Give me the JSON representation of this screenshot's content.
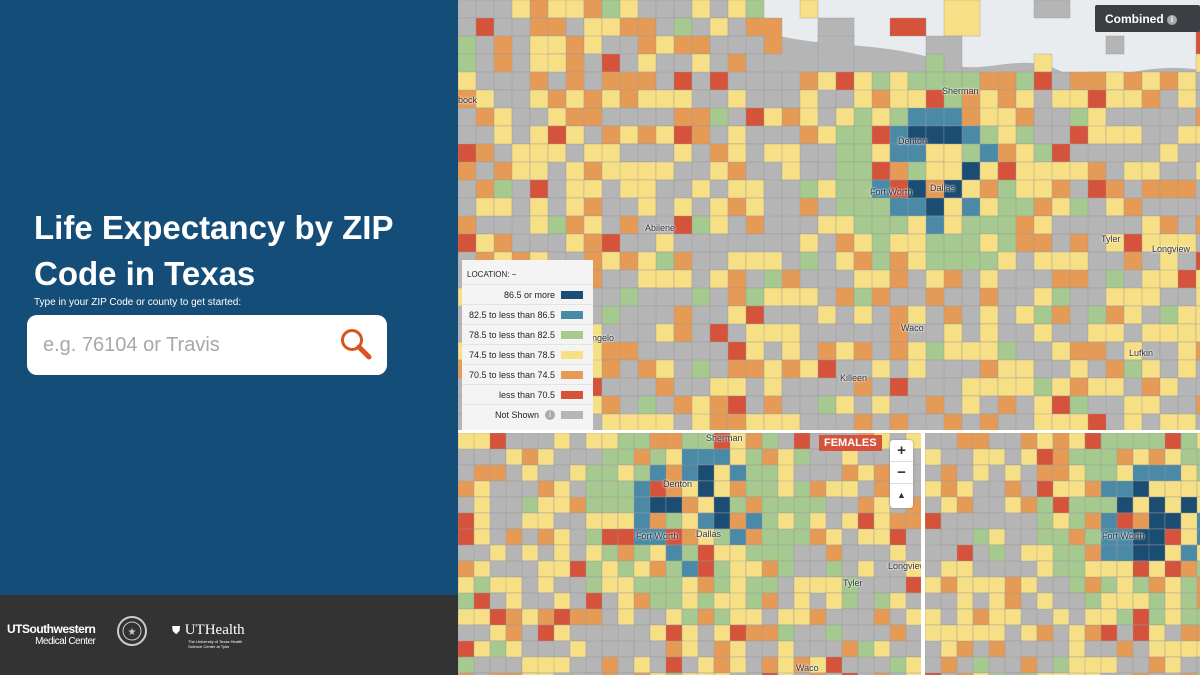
{
  "sidebar": {
    "title": "Life Expectancy by ZIP Code in Texas",
    "hint": "Type in your ZIP Code or county to get started:",
    "search_placeholder": "e.g. 76104 or Travis"
  },
  "footer": {
    "logo1_line1": "UTSouthwestern",
    "logo1_line2": "Medical Center",
    "logo3_title": "UTHealth",
    "logo3_sub": "The University of Texas Health Science Center at Tyler"
  },
  "map": {
    "mode_button": "Combined",
    "panel_label": "FEMALES",
    "cities_main": [
      "Sherman",
      "Denton",
      "Fort Worth",
      "Dallas",
      "Abilene",
      "Tyler",
      "Longview",
      "Waco",
      "San Angelo",
      "Killeen",
      "Lufkin",
      "bock"
    ],
    "cities_female": [
      "Sherman",
      "Denton",
      "Fort Worth",
      "Dallas",
      "Tyler",
      "Longview",
      "Waco"
    ],
    "cities_male": [
      "Fort Worth"
    ],
    "zoom_in": "+",
    "zoom_out": "−",
    "reset": "▲"
  },
  "legend": {
    "title": "LOCATION:",
    "collapse": "−",
    "items": [
      {
        "label": "86.5 or more",
        "color": "#1b4d73"
      },
      {
        "label": "82.5 to less than 86.5",
        "color": "#4a8aa6"
      },
      {
        "label": "78.5 to less than 82.5",
        "color": "#a6c98f"
      },
      {
        "label": "74.5 to less than 78.5",
        "color": "#f7df86"
      },
      {
        "label": "70.5 to less than 74.5",
        "color": "#e59a56"
      },
      {
        "label": "less than 70.5",
        "color": "#d4533a"
      },
      {
        "label": "Not Shown",
        "color": "#b5b5b5"
      }
    ]
  }
}
